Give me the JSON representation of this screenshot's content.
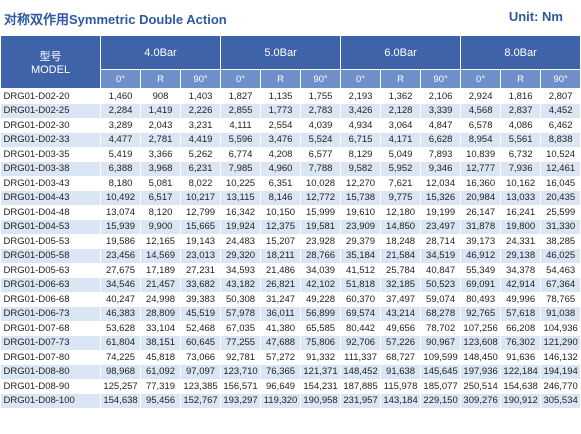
{
  "header": {
    "title": "对称双作用Symmetric Double Action",
    "unit": "Unit: Nm"
  },
  "table": {
    "model_header": [
      "型号",
      "MODEL"
    ],
    "groups": [
      "4.0Bar",
      "5.0Bar",
      "6.0Bar",
      "8.0Bar"
    ],
    "subheaders": [
      "0°",
      "R",
      "90°"
    ],
    "rows": [
      [
        "DRG01-D02-20",
        "1,460",
        "908",
        "1,403",
        "1,827",
        "1,135",
        "1,755",
        "2,193",
        "1,362",
        "2,106",
        "2,924",
        "1,816",
        "2,807"
      ],
      [
        "DRG01-D02-25",
        "2,284",
        "1,419",
        "2,226",
        "2,855",
        "1,773",
        "2,783",
        "3,426",
        "2,128",
        "3,339",
        "4,568",
        "2,837",
        "4,452"
      ],
      [
        "DRG01-D02-30",
        "3,289",
        "2,043",
        "3,231",
        "4,111",
        "2,554",
        "4,039",
        "4,934",
        "3,064",
        "4,847",
        "6,578",
        "4,086",
        "6,462"
      ],
      [
        "DRG01-D02-33",
        "4,477",
        "2,781",
        "4,419",
        "5,596",
        "3,476",
        "5,524",
        "6,715",
        "4,171",
        "6,628",
        "8,954",
        "5,561",
        "8,838"
      ],
      [
        "DRG01-D03-35",
        "5,419",
        "3,366",
        "5,262",
        "6,774",
        "4,208",
        "6,577",
        "8,129",
        "5,049",
        "7,893",
        "10,839",
        "6,732",
        "10,524"
      ],
      [
        "DRG01-D03-38",
        "6,388",
        "3,968",
        "6,231",
        "7,985",
        "4,960",
        "7,788",
        "9,582",
        "5,952",
        "9,346",
        "12,777",
        "7,936",
        "12,461"
      ],
      [
        "DRG01-D03-43",
        "8,180",
        "5,081",
        "8,022",
        "10,225",
        "6,351",
        "10,028",
        "12,270",
        "7,621",
        "12,034",
        "16,360",
        "10,162",
        "16,045"
      ],
      [
        "DRG01-D04-43",
        "10,492",
        "6,517",
        "10,217",
        "13,115",
        "8,146",
        "12,772",
        "15,738",
        "9,775",
        "15,326",
        "20,984",
        "13,033",
        "20,435"
      ],
      [
        "DRG01-D04-48",
        "13,074",
        "8,120",
        "12,799",
        "16,342",
        "10,150",
        "15,999",
        "19,610",
        "12,180",
        "19,199",
        "26,147",
        "16,241",
        "25,599"
      ],
      [
        "DRG01-D04-53",
        "15,939",
        "9,900",
        "15,665",
        "19,924",
        "12,375",
        "19,581",
        "23,909",
        "14,850",
        "23,497",
        "31,878",
        "19,800",
        "31,330"
      ],
      [
        "DRG01-D05-53",
        "19,586",
        "12,165",
        "19,143",
        "24,483",
        "15,207",
        "23,928",
        "29,379",
        "18,248",
        "28,714",
        "39,173",
        "24,331",
        "38,285"
      ],
      [
        "DRG01-D05-58",
        "23,456",
        "14,569",
        "23,013",
        "29,320",
        "18,211",
        "28,766",
        "35,184",
        "21,584",
        "34,519",
        "46,912",
        "29,138",
        "46,025"
      ],
      [
        "DRG01-D05-63",
        "27,675",
        "17,189",
        "27,231",
        "34,593",
        "21,486",
        "34,039",
        "41,512",
        "25,784",
        "40,847",
        "55,349",
        "34,378",
        "54,463"
      ],
      [
        "DRG01-D06-63",
        "34,546",
        "21,457",
        "33,682",
        "43,182",
        "26,821",
        "42,102",
        "51,818",
        "32,185",
        "50,523",
        "69,091",
        "42,914",
        "67,364"
      ],
      [
        "DRG01-D06-68",
        "40,247",
        "24,998",
        "39,383",
        "50,308",
        "31,247",
        "49,228",
        "60,370",
        "37,497",
        "59,074",
        "80,493",
        "49,996",
        "78,765"
      ],
      [
        "DRG01-D06-73",
        "46,383",
        "28,809",
        "45,519",
        "57,978",
        "36,011",
        "56,899",
        "69,574",
        "43,214",
        "68,278",
        "92,765",
        "57,618",
        "91,038"
      ],
      [
        "DRG01-D07-68",
        "53,628",
        "33,104",
        "52,468",
        "67,035",
        "41,380",
        "65,585",
        "80,442",
        "49,656",
        "78,702",
        "107,256",
        "66,208",
        "104,936"
      ],
      [
        "DRG01-D07-73",
        "61,804",
        "38,151",
        "60,645",
        "77,255",
        "47,688",
        "75,806",
        "92,706",
        "57,226",
        "90,967",
        "123,608",
        "76,302",
        "121,290"
      ],
      [
        "DRG01-D07-80",
        "74,225",
        "45,818",
        "73,066",
        "92,781",
        "57,272",
        "91,332",
        "111,337",
        "68,727",
        "109,599",
        "148,450",
        "91,636",
        "146,132"
      ],
      [
        "DRG01-D08-80",
        "98,968",
        "61,092",
        "97,097",
        "123,710",
        "76,365",
        "121,371",
        "148,452",
        "91,638",
        "145,645",
        "197,936",
        "122,184",
        "194,194"
      ],
      [
        "DRG01-D08-90",
        "125,257",
        "77,319",
        "123,385",
        "156,571",
        "96,649",
        "154,231",
        "187,885",
        "115,978",
        "185,077",
        "250,514",
        "154,638",
        "246,770"
      ],
      [
        "DRG01-D08-100",
        "154,638",
        "95,456",
        "152,767",
        "193,297",
        "119,320",
        "190,958",
        "231,957",
        "143,184",
        "229,150",
        "309,276",
        "190,912",
        "305,534"
      ]
    ]
  }
}
